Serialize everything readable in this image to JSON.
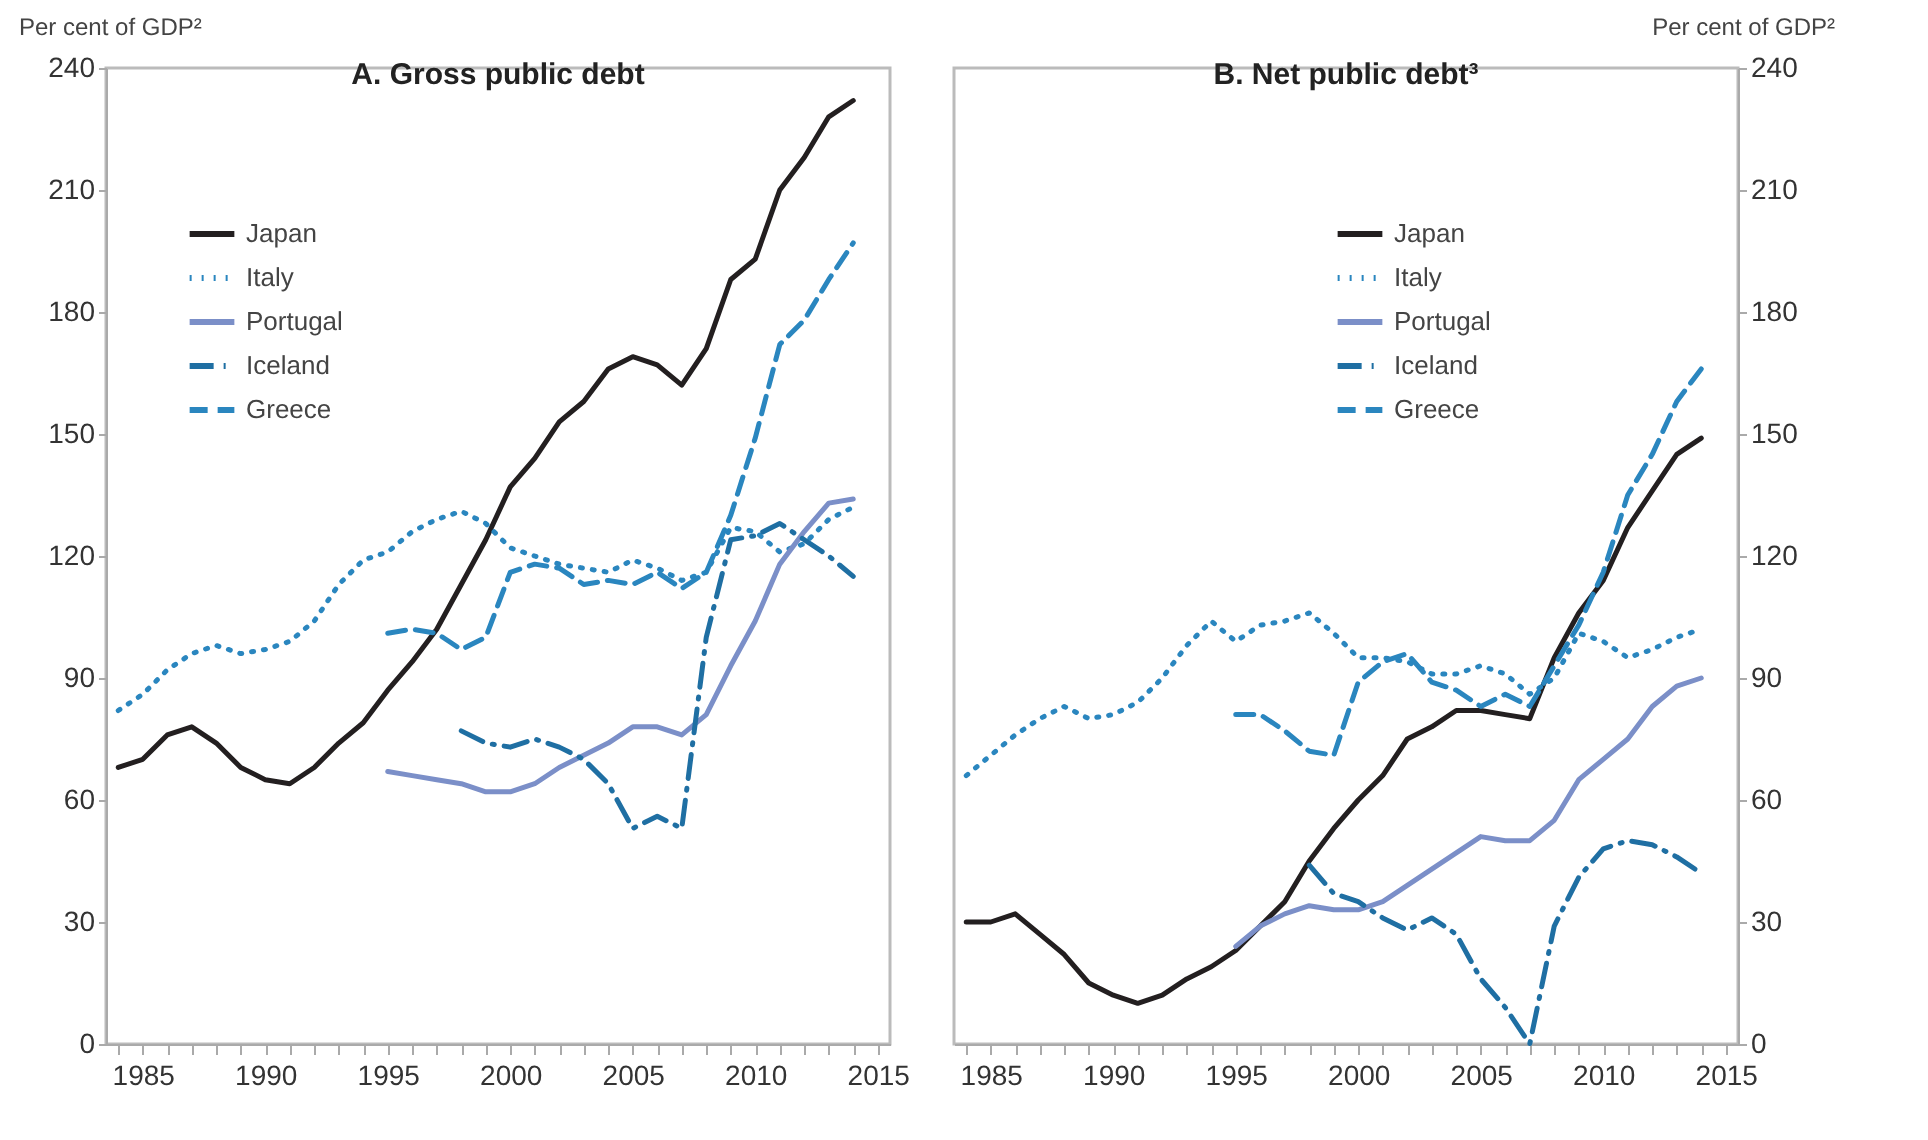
{
  "chart_data": [
    {
      "type": "line",
      "title": "A. Gross public debt",
      "ylabel": "Per cent of GDP²",
      "legend": "top left",
      "grid": false,
      "x": [
        1984,
        1985,
        1986,
        1987,
        1988,
        1989,
        1990,
        1991,
        1992,
        1993,
        1994,
        1995,
        1996,
        1997,
        1998,
        1999,
        2000,
        2001,
        2002,
        2003,
        2004,
        2005,
        2006,
        2007,
        2008,
        2009,
        2010,
        2011,
        2012,
        2013,
        2014
      ],
      "xlim": [
        1983.5,
        2015.5
      ],
      "xticks": [
        {
          "value": 1984,
          "label": null
        },
        1985,
        {
          "value": 1986,
          "label": null
        },
        {
          "value": 1987,
          "label": null
        },
        {
          "value": 1988,
          "label": null
        },
        {
          "value": 1989,
          "label": null
        },
        1990,
        {
          "value": 1991,
          "label": null
        },
        {
          "value": 1992,
          "label": null
        },
        {
          "value": 1993,
          "label": null
        },
        {
          "value": 1994,
          "label": null
        },
        1995,
        {
          "value": 1996,
          "label": null
        },
        {
          "value": 1997,
          "label": null
        },
        {
          "value": 1998,
          "label": null
        },
        {
          "value": 1999,
          "label": null
        },
        2000,
        {
          "value": 2001,
          "label": null
        },
        {
          "value": 2002,
          "label": null
        },
        {
          "value": 2003,
          "label": null
        },
        {
          "value": 2004,
          "label": null
        },
        2005,
        {
          "value": 2006,
          "label": null
        },
        {
          "value": 2007,
          "label": null
        },
        {
          "value": 2008,
          "label": null
        },
        {
          "value": 2009,
          "label": null
        },
        2010,
        {
          "value": 2011,
          "label": null
        },
        {
          "value": 2012,
          "label": null
        },
        {
          "value": 2013,
          "label": null
        },
        {
          "value": 2014,
          "label": null
        },
        2015
      ],
      "ylim": [
        0,
        240
      ],
      "yticks": [
        0,
        30,
        60,
        90,
        120,
        150,
        180,
        210,
        240
      ],
      "series": [
        {
          "name": "Japan",
          "color": "#231f20",
          "line_style": "solid",
          "values": [
            68,
            70,
            76,
            78,
            74,
            68,
            65,
            64,
            68,
            74,
            79,
            87,
            94,
            102,
            113,
            124,
            137,
            144,
            153,
            158,
            166,
            169,
            167,
            162,
            171,
            188,
            193,
            210,
            218,
            228,
            232
          ]
        },
        {
          "name": "Italy",
          "color": "#2a86bf",
          "line_style": "dotted",
          "values": [
            82,
            86,
            92,
            96,
            98,
            96,
            97,
            99,
            104,
            113,
            119,
            121,
            126,
            129,
            131,
            128,
            122,
            120,
            118,
            117,
            116,
            119,
            117,
            114,
            116,
            127,
            126,
            121,
            123,
            129,
            132
          ]
        },
        {
          "name": "Portugal",
          "color": "#7b8fc8",
          "line_style": "solid",
          "values": [
            null,
            null,
            null,
            null,
            null,
            null,
            null,
            null,
            null,
            null,
            null,
            67,
            66,
            65,
            64,
            62,
            62,
            64,
            68,
            71,
            74,
            78,
            78,
            76,
            81,
            93,
            104,
            118,
            126,
            133,
            134
          ]
        },
        {
          "name": "Iceland",
          "color": "#1f6fa3",
          "line_style": "dashdot",
          "values": [
            null,
            null,
            null,
            null,
            null,
            null,
            null,
            null,
            null,
            null,
            null,
            null,
            null,
            null,
            77,
            74,
            73,
            75,
            73,
            70,
            64,
            53,
            56,
            53,
            100,
            124,
            125,
            128,
            124,
            120,
            115
          ]
        },
        {
          "name": "Greece",
          "color": "#2a86bf",
          "line_style": "dashed",
          "values": [
            null,
            null,
            null,
            null,
            null,
            null,
            null,
            null,
            null,
            null,
            null,
            101,
            102,
            101,
            97,
            100,
            116,
            118,
            117,
            113,
            114,
            113,
            116,
            112,
            116,
            130,
            149,
            172,
            178,
            188,
            197
          ]
        }
      ]
    },
    {
      "type": "line",
      "title": "B. Net public debt³",
      "ylabel": "Per cent of GDP²",
      "legend": "top",
      "grid": false,
      "x": [
        1984,
        1985,
        1986,
        1987,
        1988,
        1989,
        1990,
        1991,
        1992,
        1993,
        1994,
        1995,
        1996,
        1997,
        1998,
        1999,
        2000,
        2001,
        2002,
        2003,
        2004,
        2005,
        2006,
        2007,
        2008,
        2009,
        2010,
        2011,
        2012,
        2013,
        2014
      ],
      "xlim": [
        1983.5,
        2015.5
      ],
      "xticks": [
        {
          "value": 1984,
          "label": null
        },
        1985,
        {
          "value": 1986,
          "label": null
        },
        {
          "value": 1987,
          "label": null
        },
        {
          "value": 1988,
          "label": null
        },
        {
          "value": 1989,
          "label": null
        },
        1990,
        {
          "value": 1991,
          "label": null
        },
        {
          "value": 1992,
          "label": null
        },
        {
          "value": 1993,
          "label": null
        },
        {
          "value": 1994,
          "label": null
        },
        1995,
        {
          "value": 1996,
          "label": null
        },
        {
          "value": 1997,
          "label": null
        },
        {
          "value": 1998,
          "label": null
        },
        {
          "value": 1999,
          "label": null
        },
        2000,
        {
          "value": 2001,
          "label": null
        },
        {
          "value": 2002,
          "label": null
        },
        {
          "value": 2003,
          "label": null
        },
        {
          "value": 2004,
          "label": null
        },
        2005,
        {
          "value": 2006,
          "label": null
        },
        {
          "value": 2007,
          "label": null
        },
        {
          "value": 2008,
          "label": null
        },
        {
          "value": 2009,
          "label": null
        },
        2010,
        {
          "value": 2011,
          "label": null
        },
        {
          "value": 2012,
          "label": null
        },
        {
          "value": 2013,
          "label": null
        },
        {
          "value": 2014,
          "label": null
        },
        2015
      ],
      "ylim": [
        0,
        240
      ],
      "yticks": [
        0,
        30,
        60,
        90,
        120,
        150,
        180,
        210,
        240
      ],
      "series": [
        {
          "name": "Japan",
          "color": "#231f20",
          "line_style": "solid",
          "values": [
            30,
            30,
            32,
            27,
            22,
            15,
            12,
            10,
            12,
            16,
            19,
            23,
            29,
            35,
            45,
            53,
            60,
            66,
            75,
            78,
            82,
            82,
            81,
            80,
            95,
            106,
            114,
            127,
            136,
            145,
            149
          ]
        },
        {
          "name": "Italy",
          "color": "#2a86bf",
          "line_style": "dotted",
          "values": [
            66,
            71,
            76,
            80,
            83,
            80,
            81,
            84,
            90,
            98,
            104,
            99,
            103,
            104,
            106,
            101,
            95,
            95,
            94,
            91,
            91,
            93,
            91,
            86,
            90,
            101,
            99,
            95,
            97,
            100,
            102
          ]
        },
        {
          "name": "Portugal",
          "color": "#7b8fc8",
          "line_style": "solid",
          "values": [
            null,
            null,
            null,
            null,
            null,
            null,
            null,
            null,
            null,
            null,
            null,
            24,
            29,
            32,
            34,
            33,
            33,
            35,
            39,
            43,
            47,
            51,
            50,
            50,
            55,
            65,
            70,
            75,
            83,
            88,
            90
          ]
        },
        {
          "name": "Iceland",
          "color": "#1f6fa3",
          "line_style": "dashdot",
          "values": [
            null,
            null,
            null,
            null,
            null,
            null,
            null,
            null,
            null,
            null,
            null,
            null,
            null,
            null,
            44,
            37,
            35,
            31,
            28,
            31,
            27,
            16,
            9,
            0,
            29,
            41,
            48,
            50,
            49,
            46,
            42
          ]
        },
        {
          "name": "Greece",
          "color": "#2a86bf",
          "line_style": "dashed",
          "values": [
            null,
            null,
            null,
            null,
            null,
            null,
            null,
            null,
            null,
            null,
            null,
            81,
            81,
            77,
            72,
            71,
            89,
            94,
            96,
            89,
            87,
            83,
            86,
            83,
            93,
            103,
            116,
            135,
            145,
            158,
            166
          ]
        }
      ]
    }
  ]
}
